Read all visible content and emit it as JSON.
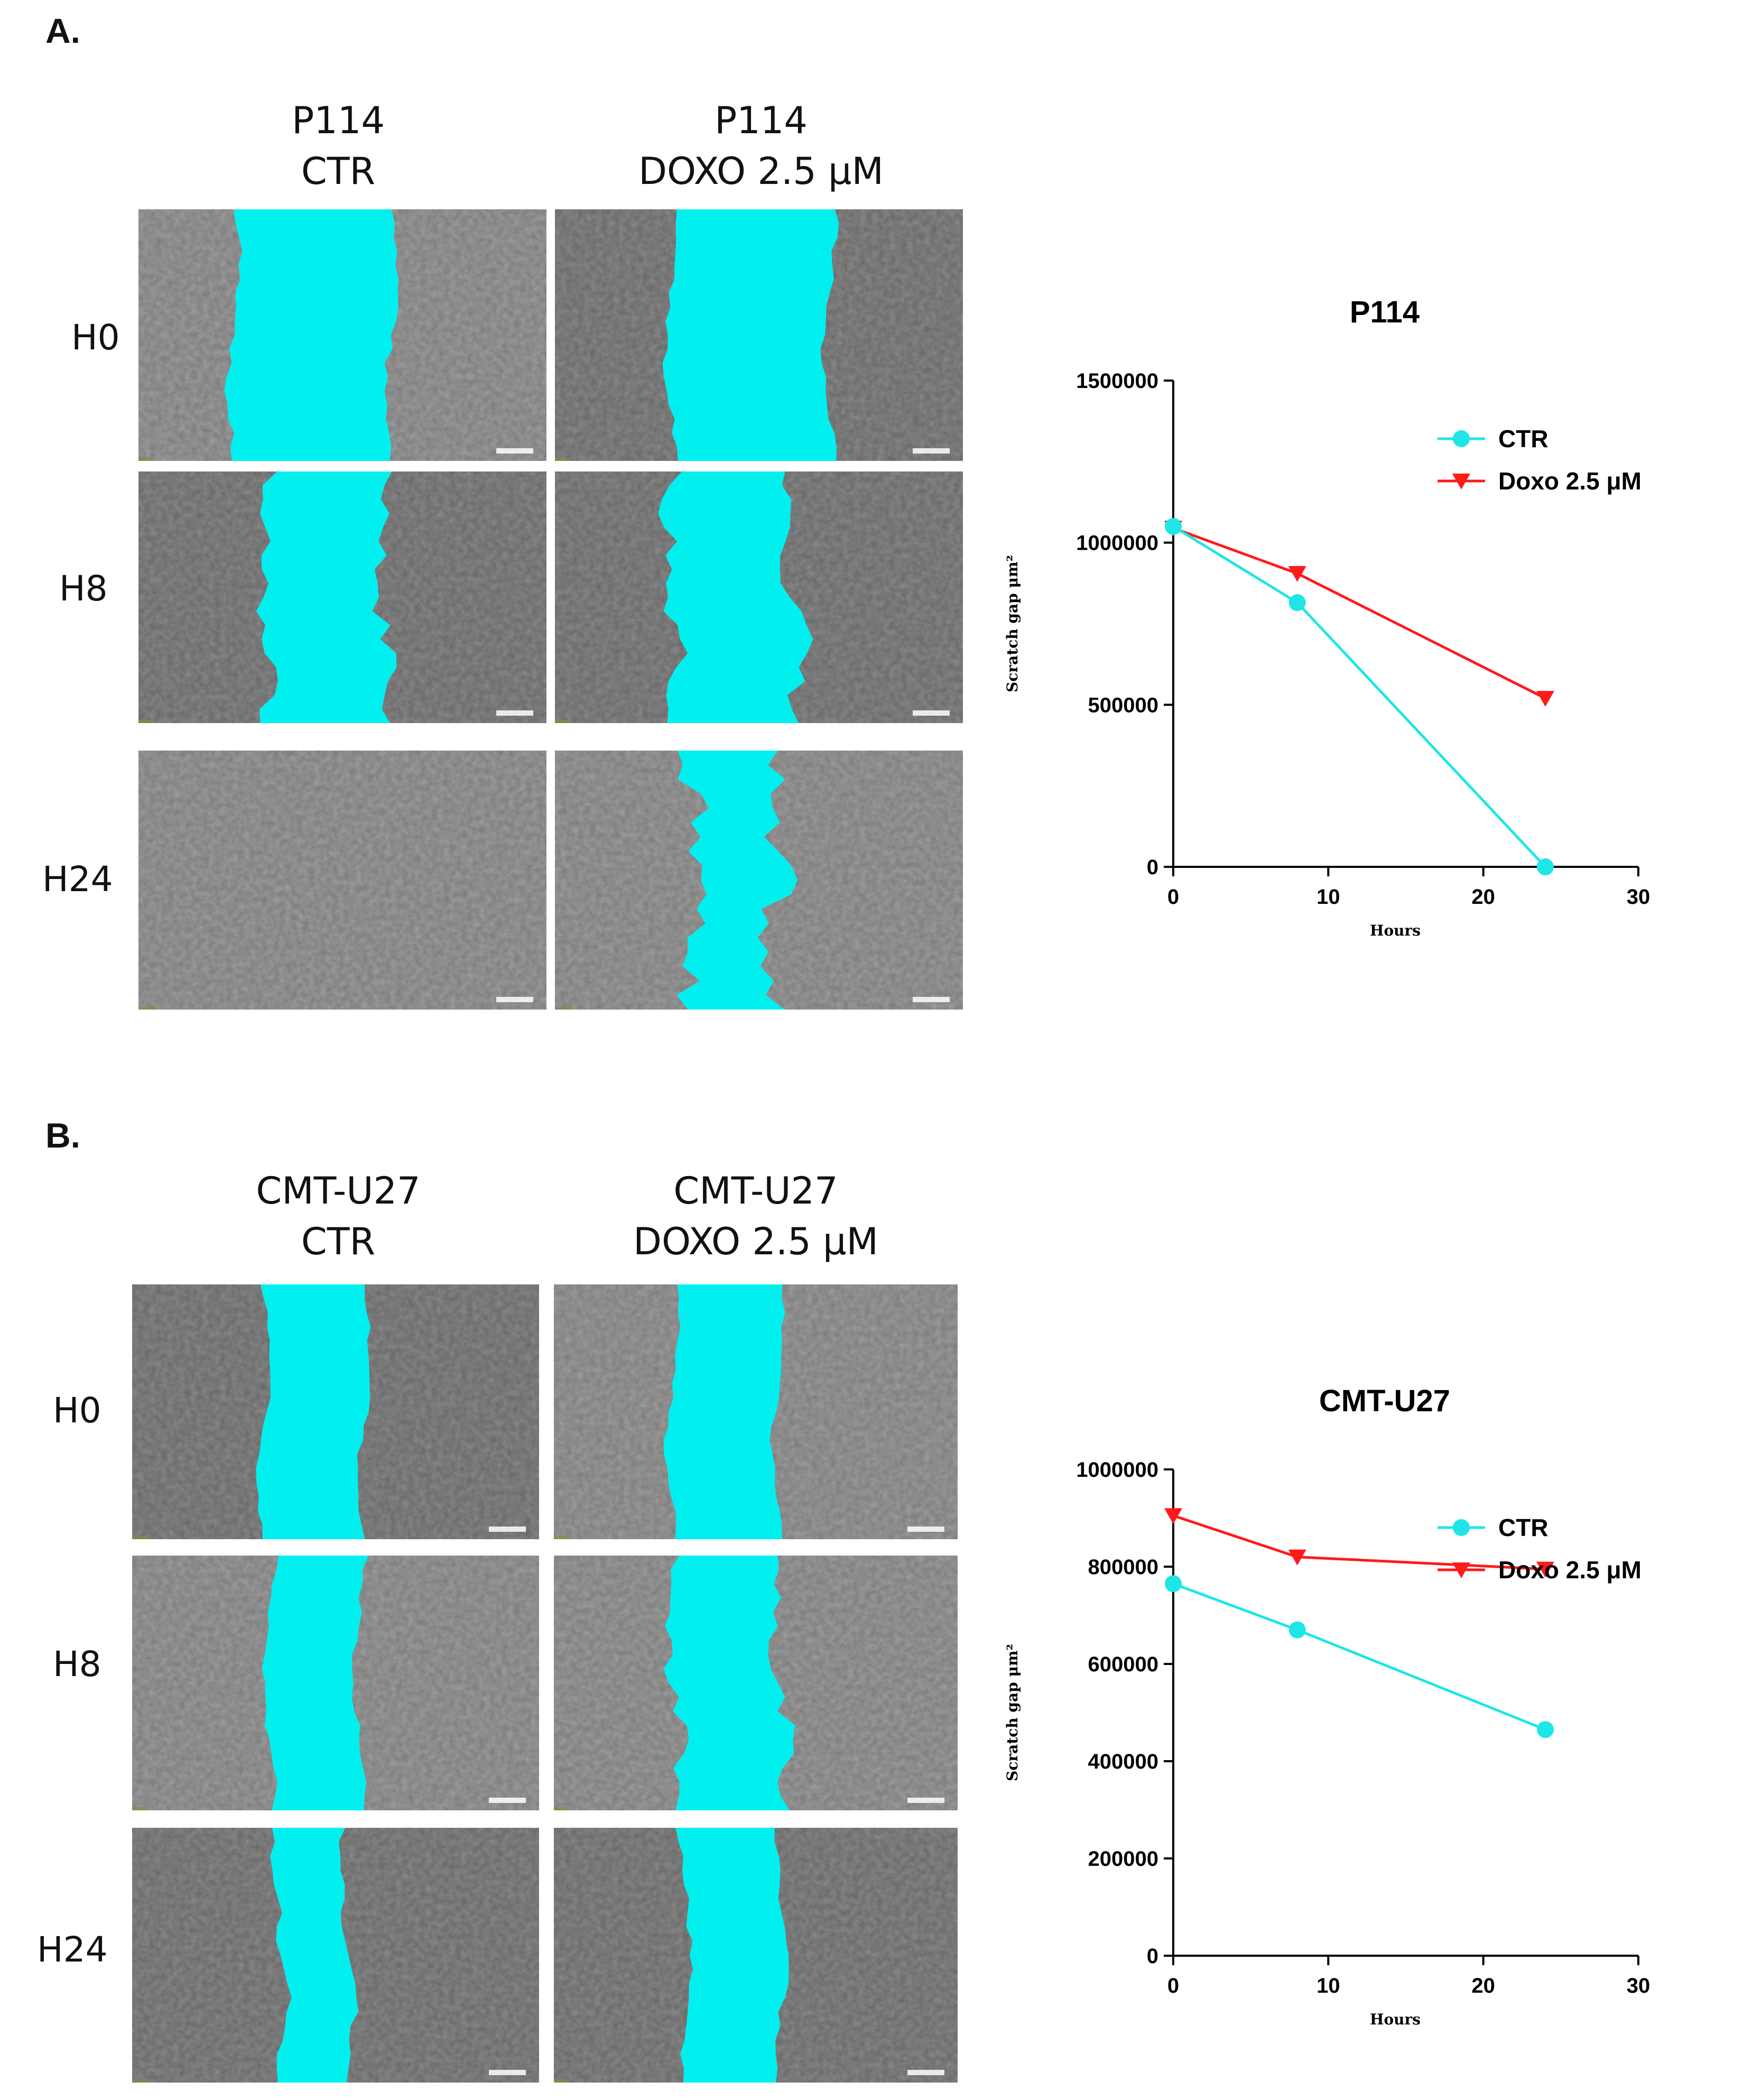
{
  "panels": [
    {
      "letter": "A.",
      "columns": [
        {
          "line1": "P114",
          "line2": "CTR"
        },
        {
          "line1": "P114",
          "line2": "DOXO 2.5 μM"
        }
      ],
      "rows": [
        "H0",
        "H8",
        "H24"
      ]
    },
    {
      "letter": "B.",
      "columns": [
        {
          "line1": "CMT-U27",
          "line2": "CTR"
        },
        {
          "line1": "CMT-U27",
          "line2": "DOXO 2.5 μM"
        }
      ],
      "rows": [
        "H0",
        "H8",
        "H24"
      ]
    }
  ],
  "colors": {
    "ctr": "#1ee6e6",
    "doxo": "#ff1a1a",
    "gap_fill": "#00f0f0",
    "axis": "#000000"
  },
  "chart_data": [
    {
      "type": "line",
      "title": "P114",
      "xlabel": "Hours",
      "ylabel": "Scratch gap μm²",
      "xlim": [
        0,
        30
      ],
      "ylim": [
        0,
        1500000
      ],
      "xticks": [
        0,
        10,
        20,
        30
      ],
      "yticks": [
        0,
        500000,
        1000000,
        1500000
      ],
      "legend_position": "top-right",
      "series": [
        {
          "name": "CTR",
          "marker": "circle",
          "x": [
            0,
            8,
            24
          ],
          "y": [
            1050000,
            815000,
            0
          ]
        },
        {
          "name": "Doxo 2.5 μM",
          "marker": "triangle-down",
          "x": [
            0,
            8,
            24
          ],
          "y": [
            1045000,
            905000,
            520000
          ]
        }
      ]
    },
    {
      "type": "line",
      "title": "CMT-U27",
      "xlabel": "Hours",
      "ylabel": "Scratch gap μm²",
      "xlim": [
        0,
        30
      ],
      "ylim": [
        0,
        1000000
      ],
      "xticks": [
        0,
        10,
        20,
        30
      ],
      "yticks": [
        0,
        200000,
        400000,
        600000,
        800000,
        1000000
      ],
      "legend_position": "top-right",
      "series": [
        {
          "name": "CTR",
          "marker": "circle",
          "x": [
            0,
            8,
            24
          ],
          "y": [
            765000,
            670000,
            465000
          ]
        },
        {
          "name": "Doxo 2.5 μM",
          "marker": "triangle-down",
          "x": [
            0,
            8,
            24
          ],
          "y": [
            905000,
            820000,
            795000
          ]
        }
      ]
    }
  ]
}
